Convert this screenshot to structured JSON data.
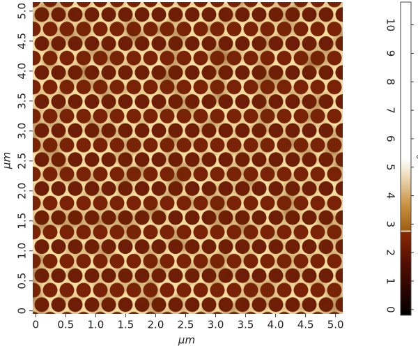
{
  "chart_data": {
    "type": "image",
    "x_label": "µm",
    "y_label": "µm",
    "colorbar_label": "°",
    "xlim": [
      -0.05,
      5.12
    ],
    "ylim": [
      -0.05,
      5.15
    ],
    "xticks": [
      0,
      0.5,
      {
        "value": 1,
        "label": "1.0"
      },
      1.5,
      {
        "value": 2,
        "label": "2.0"
      },
      2.5,
      {
        "value": 3,
        "label": "3.0"
      },
      3.5,
      {
        "value": 4,
        "label": "4.0"
      },
      4.5,
      {
        "value": 5,
        "label": "5.0"
      }
    ],
    "yticks": [
      0,
      0.5,
      {
        "value": 1,
        "label": "1.0"
      },
      1.5,
      {
        "value": 2,
        "label": "2.0"
      },
      2.5,
      {
        "value": 3,
        "label": "3.0"
      },
      3.5,
      {
        "value": 4,
        "label": "4.0"
      },
      4.5,
      {
        "value": 5,
        "label": "5.0"
      }
    ],
    "clim": [
      -0.2,
      10.8
    ],
    "cticks": [
      0,
      1,
      2,
      3,
      4,
      5,
      6,
      7,
      8,
      9,
      10
    ]
  }
}
